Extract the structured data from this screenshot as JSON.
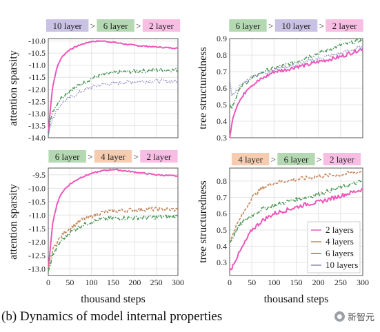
{
  "caption": "(b) Dynamics of model internal properties",
  "watermark": "新智元",
  "colors": {
    "2": "#ee55bb",
    "4": "#c8865a",
    "6": "#4e9a5a",
    "10": "#8a86c4"
  },
  "rank_bg": {
    "2": "#f7bde3",
    "4": "#f5ccb0",
    "6": "#b4d9b2",
    "10": "#c9c2e4"
  },
  "legend": [
    {
      "label": "2 layers",
      "key": "2"
    },
    {
      "label": "4 layers",
      "key": "4"
    },
    {
      "label": "6 layers",
      "key": "6"
    },
    {
      "label": "10 layers",
      "key": "10"
    }
  ],
  "chart_data": [
    {
      "type": "line",
      "ylabel": "attention sparsity",
      "xlabel": "",
      "xlim": [
        0,
        300
      ],
      "ylim": [
        -14.0,
        -9.9
      ],
      "xticks": [
        0,
        50,
        100,
        150,
        200,
        250,
        300
      ],
      "yticks": [
        -14.0,
        -13.5,
        -13.0,
        -12.5,
        -12.0,
        -11.5,
        -11.0,
        -10.5,
        -10.0
      ],
      "ytick_labels": [
        "-14.0",
        "-13.5",
        "-13.0",
        "-12.5",
        "-12.0",
        "-11.5",
        "-11.0",
        "-10.5",
        "-10.0"
      ],
      "show_xtick_labels": false,
      "ranking": [
        {
          "label": "10 layer",
          "key": "10"
        },
        {
          "label": "6 layer",
          "key": "6"
        },
        {
          "label": "2 layer",
          "key": "2"
        }
      ],
      "series": [
        {
          "key": "2",
          "style": "solid",
          "x": [
            0,
            5,
            10,
            20,
            30,
            40,
            50,
            75,
            100,
            125,
            150,
            175,
            200,
            250,
            300
          ],
          "y": [
            -13.8,
            -12.8,
            -11.9,
            -11.1,
            -10.7,
            -10.5,
            -10.35,
            -10.15,
            -10.02,
            -10.0,
            -10.05,
            -10.12,
            -10.18,
            -10.25,
            -10.3
          ]
        },
        {
          "key": "6",
          "style": "dashdot",
          "x": [
            0,
            5,
            10,
            20,
            30,
            40,
            50,
            75,
            100,
            125,
            150,
            200,
            250,
            300
          ],
          "y": [
            -13.9,
            -13.3,
            -12.9,
            -12.6,
            -12.35,
            -12.2,
            -12.05,
            -11.8,
            -11.55,
            -11.4,
            -11.32,
            -11.25,
            -11.2,
            -11.2
          ]
        },
        {
          "key": "10",
          "style": "dotted",
          "x": [
            0,
            5,
            10,
            20,
            30,
            40,
            50,
            75,
            100,
            125,
            150,
            200,
            250,
            300
          ],
          "y": [
            -13.9,
            -13.5,
            -13.2,
            -12.85,
            -12.6,
            -12.45,
            -12.35,
            -12.1,
            -11.9,
            -11.8,
            -11.75,
            -11.68,
            -11.65,
            -11.68
          ]
        }
      ]
    },
    {
      "type": "line",
      "ylabel": "tree structuredness",
      "xlabel": "",
      "xlim": [
        0,
        300
      ],
      "ylim": [
        0.3,
        0.9
      ],
      "xticks": [
        0,
        50,
        100,
        150,
        200,
        250,
        300
      ],
      "yticks": [
        0.3,
        0.4,
        0.5,
        0.6,
        0.7,
        0.8,
        0.9
      ],
      "ytick_labels": [
        "0.3",
        "0.4",
        "0.5",
        "0.6",
        "0.7",
        "0.8",
        "0.9"
      ],
      "show_xtick_labels": false,
      "ranking": [
        {
          "label": "6 layer",
          "key": "6"
        },
        {
          "label": "10 layer",
          "key": "10"
        },
        {
          "label": "2 layer",
          "key": "2"
        }
      ],
      "series": [
        {
          "key": "2",
          "style": "solid",
          "x": [
            0,
            5,
            10,
            20,
            30,
            40,
            50,
            75,
            100,
            125,
            150,
            175,
            200,
            250,
            300
          ],
          "y": [
            0.3,
            0.38,
            0.45,
            0.52,
            0.55,
            0.6,
            0.62,
            0.66,
            0.7,
            0.71,
            0.73,
            0.74,
            0.76,
            0.79,
            0.84
          ]
        },
        {
          "key": "6",
          "style": "dashdot",
          "x": [
            0,
            5,
            10,
            20,
            30,
            40,
            50,
            75,
            100,
            125,
            150,
            175,
            200,
            250,
            300
          ],
          "y": [
            0.5,
            0.48,
            0.52,
            0.58,
            0.62,
            0.64,
            0.66,
            0.7,
            0.72,
            0.74,
            0.76,
            0.79,
            0.81,
            0.86,
            0.89
          ]
        },
        {
          "key": "10",
          "style": "dotted",
          "x": [
            0,
            5,
            10,
            20,
            30,
            40,
            50,
            75,
            100,
            125,
            150,
            175,
            200,
            250,
            300
          ],
          "y": [
            0.66,
            0.55,
            0.57,
            0.6,
            0.63,
            0.65,
            0.67,
            0.69,
            0.71,
            0.73,
            0.74,
            0.76,
            0.78,
            0.81,
            0.85
          ]
        }
      ]
    },
    {
      "type": "line",
      "ylabel": "attention sparsity",
      "xlabel": "thousand steps",
      "xlim": [
        0,
        300
      ],
      "ylim": [
        -13.25,
        -9.25
      ],
      "xticks": [
        0,
        50,
        100,
        150,
        200,
        250,
        300
      ],
      "yticks": [
        -13.0,
        -12.5,
        -12.0,
        -11.5,
        -11.0,
        -10.5,
        -10.0,
        -9.5
      ],
      "ytick_labels": [
        "-13.0",
        "-12.5",
        "-12.0",
        "-11.5",
        "-11.0",
        "-10.5",
        "-10.0",
        "-9.5"
      ],
      "show_xtick_labels": true,
      "ranking": [
        {
          "label": "6 layer",
          "key": "6"
        },
        {
          "label": "4 layer",
          "key": "4"
        },
        {
          "label": "2 layer",
          "key": "2"
        }
      ],
      "series": [
        {
          "key": "2",
          "style": "solid",
          "x": [
            0,
            5,
            10,
            20,
            30,
            40,
            50,
            75,
            100,
            125,
            150,
            175,
            200,
            250,
            300
          ],
          "y": [
            -13.0,
            -12.2,
            -11.3,
            -10.6,
            -10.2,
            -10.0,
            -9.85,
            -9.6,
            -9.45,
            -9.35,
            -9.3,
            -9.35,
            -9.4,
            -9.5,
            -9.55
          ]
        },
        {
          "key": "4",
          "style": "dashed",
          "x": [
            0,
            5,
            10,
            20,
            30,
            40,
            50,
            75,
            100,
            125,
            150,
            200,
            250,
            300
          ],
          "y": [
            -13.0,
            -12.6,
            -12.3,
            -12.0,
            -11.8,
            -11.6,
            -11.5,
            -11.2,
            -11.05,
            -10.9,
            -10.85,
            -10.8,
            -10.78,
            -10.8
          ]
        },
        {
          "key": "6",
          "style": "dashdot",
          "x": [
            0,
            5,
            10,
            20,
            30,
            40,
            50,
            75,
            100,
            125,
            150,
            200,
            250,
            300
          ],
          "y": [
            -13.1,
            -12.8,
            -12.5,
            -12.2,
            -11.95,
            -11.8,
            -11.65,
            -11.4,
            -11.25,
            -11.15,
            -11.12,
            -11.1,
            -11.08,
            -11.05
          ]
        }
      ]
    },
    {
      "type": "line",
      "ylabel": "tree structuredness",
      "xlabel": "thousand steps",
      "xlim": [
        0,
        300
      ],
      "ylim": [
        0.22,
        0.88
      ],
      "xticks": [
        0,
        50,
        100,
        150,
        200,
        250,
        300
      ],
      "yticks": [
        0.3,
        0.4,
        0.5,
        0.6,
        0.7,
        0.8
      ],
      "ytick_labels": [
        "0.3",
        "0.4",
        "0.5",
        "0.6",
        "0.7",
        "0.8"
      ],
      "show_xtick_labels": true,
      "legend": "bottom-right",
      "ranking": [
        {
          "label": "4 layer",
          "key": "4"
        },
        {
          "label": "6 layer",
          "key": "6"
        },
        {
          "label": "2 layer",
          "key": "2"
        }
      ],
      "series": [
        {
          "key": "2",
          "style": "solid",
          "x": [
            0,
            5,
            10,
            20,
            30,
            40,
            50,
            75,
            100,
            125,
            150,
            175,
            200,
            250,
            300
          ],
          "y": [
            0.25,
            0.27,
            0.3,
            0.35,
            0.4,
            0.45,
            0.5,
            0.56,
            0.6,
            0.62,
            0.64,
            0.66,
            0.67,
            0.71,
            0.75
          ]
        },
        {
          "key": "4",
          "style": "dashed",
          "x": [
            0,
            5,
            10,
            20,
            30,
            40,
            50,
            75,
            100,
            125,
            150,
            175,
            200,
            250,
            300
          ],
          "y": [
            0.42,
            0.45,
            0.5,
            0.55,
            0.6,
            0.65,
            0.7,
            0.76,
            0.79,
            0.8,
            0.81,
            0.82,
            0.83,
            0.84,
            0.86
          ]
        },
        {
          "key": "6",
          "style": "dashdot",
          "x": [
            0,
            5,
            10,
            20,
            30,
            40,
            50,
            75,
            100,
            125,
            150,
            175,
            200,
            250,
            300
          ],
          "y": [
            0.42,
            0.44,
            0.47,
            0.52,
            0.55,
            0.57,
            0.59,
            0.63,
            0.65,
            0.67,
            0.69,
            0.7,
            0.72,
            0.76,
            0.8
          ]
        }
      ]
    }
  ]
}
